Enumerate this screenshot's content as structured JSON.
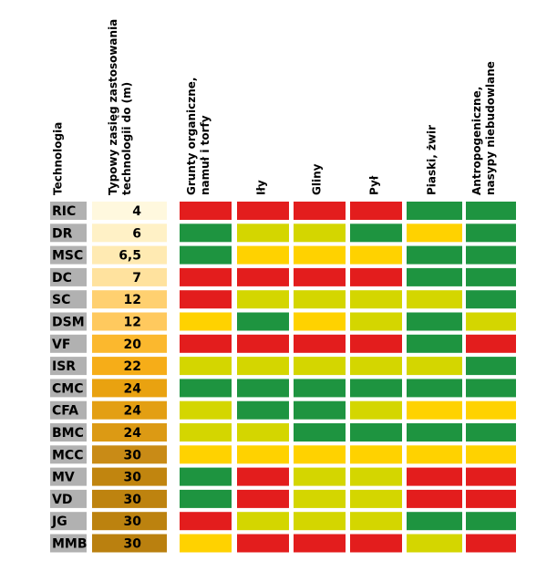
{
  "chart_data": {
    "type": "table",
    "columns": [
      "Technologia",
      "Typowy zasięg zastosowania technologii do (m)",
      "Grunty organiczne, namuł i torfy",
      "Iły",
      "Gliny",
      "Pył",
      "Piaski, żwir",
      "Antropogeniczne, nasypy niebudowlane"
    ],
    "header_lines": [
      [
        "Technologia"
      ],
      [
        "Typowy zasięg zastosowania",
        "technologii do (m)"
      ],
      [
        "Grunty organiczne,",
        "namuł i torfy"
      ],
      [
        "Iły"
      ],
      [
        "Gliny"
      ],
      [
        "Pył"
      ],
      [
        "Piaski, żwir"
      ],
      [
        "Antropogeniczne,",
        "nasypy niebudowlane"
      ]
    ],
    "legend_colors": {
      "R": "#e31d1d",
      "Y": "#d4d600",
      "O": "#ffd200",
      "G": "#1e9440"
    },
    "rows": [
      {
        "tech": "RIC",
        "range": "4",
        "range_color": "#fff8de",
        "cells": [
          "R",
          "R",
          "R",
          "R",
          "G",
          "G"
        ]
      },
      {
        "tech": "DR",
        "range": "6",
        "range_color": "#fff1c6",
        "cells": [
          "G",
          "Y",
          "Y",
          "G",
          "O",
          "G"
        ]
      },
      {
        "tech": "MSC",
        "range": "6,5",
        "range_color": "#ffeab2",
        "cells": [
          "G",
          "O",
          "O",
          "O",
          "G",
          "G"
        ]
      },
      {
        "tech": "DC",
        "range": "7",
        "range_color": "#ffe29e",
        "cells": [
          "R",
          "R",
          "R",
          "R",
          "G",
          "G"
        ]
      },
      {
        "tech": "SC",
        "range": "12",
        "range_color": "#ffd070",
        "cells": [
          "R",
          "Y",
          "Y",
          "Y",
          "Y",
          "G"
        ]
      },
      {
        "tech": "DSM",
        "range": "12",
        "range_color": "#ffc95e",
        "cells": [
          "O",
          "G",
          "O",
          "Y",
          "G",
          "Y"
        ]
      },
      {
        "tech": "VF",
        "range": "20",
        "range_color": "#fbb82e",
        "cells": [
          "R",
          "R",
          "R",
          "R",
          "G",
          "R"
        ]
      },
      {
        "tech": "ISR",
        "range": "22",
        "range_color": "#f6ad18",
        "cells": [
          "Y",
          "Y",
          "Y",
          "Y",
          "Y",
          "G"
        ]
      },
      {
        "tech": "CMC",
        "range": "24",
        "range_color": "#e9a210",
        "cells": [
          "G",
          "G",
          "G",
          "G",
          "G",
          "G"
        ]
      },
      {
        "tech": "CFA",
        "range": "24",
        "range_color": "#e39f13",
        "cells": [
          "Y",
          "G",
          "G",
          "Y",
          "O",
          "O"
        ]
      },
      {
        "tech": "BMC",
        "range": "24",
        "range_color": "#dc9a14",
        "cells": [
          "Y",
          "Y",
          "G",
          "G",
          "G",
          "G"
        ]
      },
      {
        "tech": "MCC",
        "range": "30",
        "range_color": "#c98b16",
        "cells": [
          "O",
          "O",
          "O",
          "O",
          "O",
          "O"
        ]
      },
      {
        "tech": "MV",
        "range": "30",
        "range_color": "#c1850f",
        "cells": [
          "G",
          "R",
          "Y",
          "Y",
          "R",
          "R"
        ]
      },
      {
        "tech": "VD",
        "range": "30",
        "range_color": "#be830f",
        "cells": [
          "G",
          "R",
          "Y",
          "Y",
          "R",
          "R"
        ]
      },
      {
        "tech": "JG",
        "range": "30",
        "range_color": "#bc820f",
        "cells": [
          "R",
          "Y",
          "Y",
          "Y",
          "G",
          "G"
        ]
      },
      {
        "tech": "MMB",
        "range": "30",
        "range_color": "#ba800f",
        "cells": [
          "O",
          "R",
          "R",
          "R",
          "Y",
          "R"
        ]
      }
    ]
  }
}
